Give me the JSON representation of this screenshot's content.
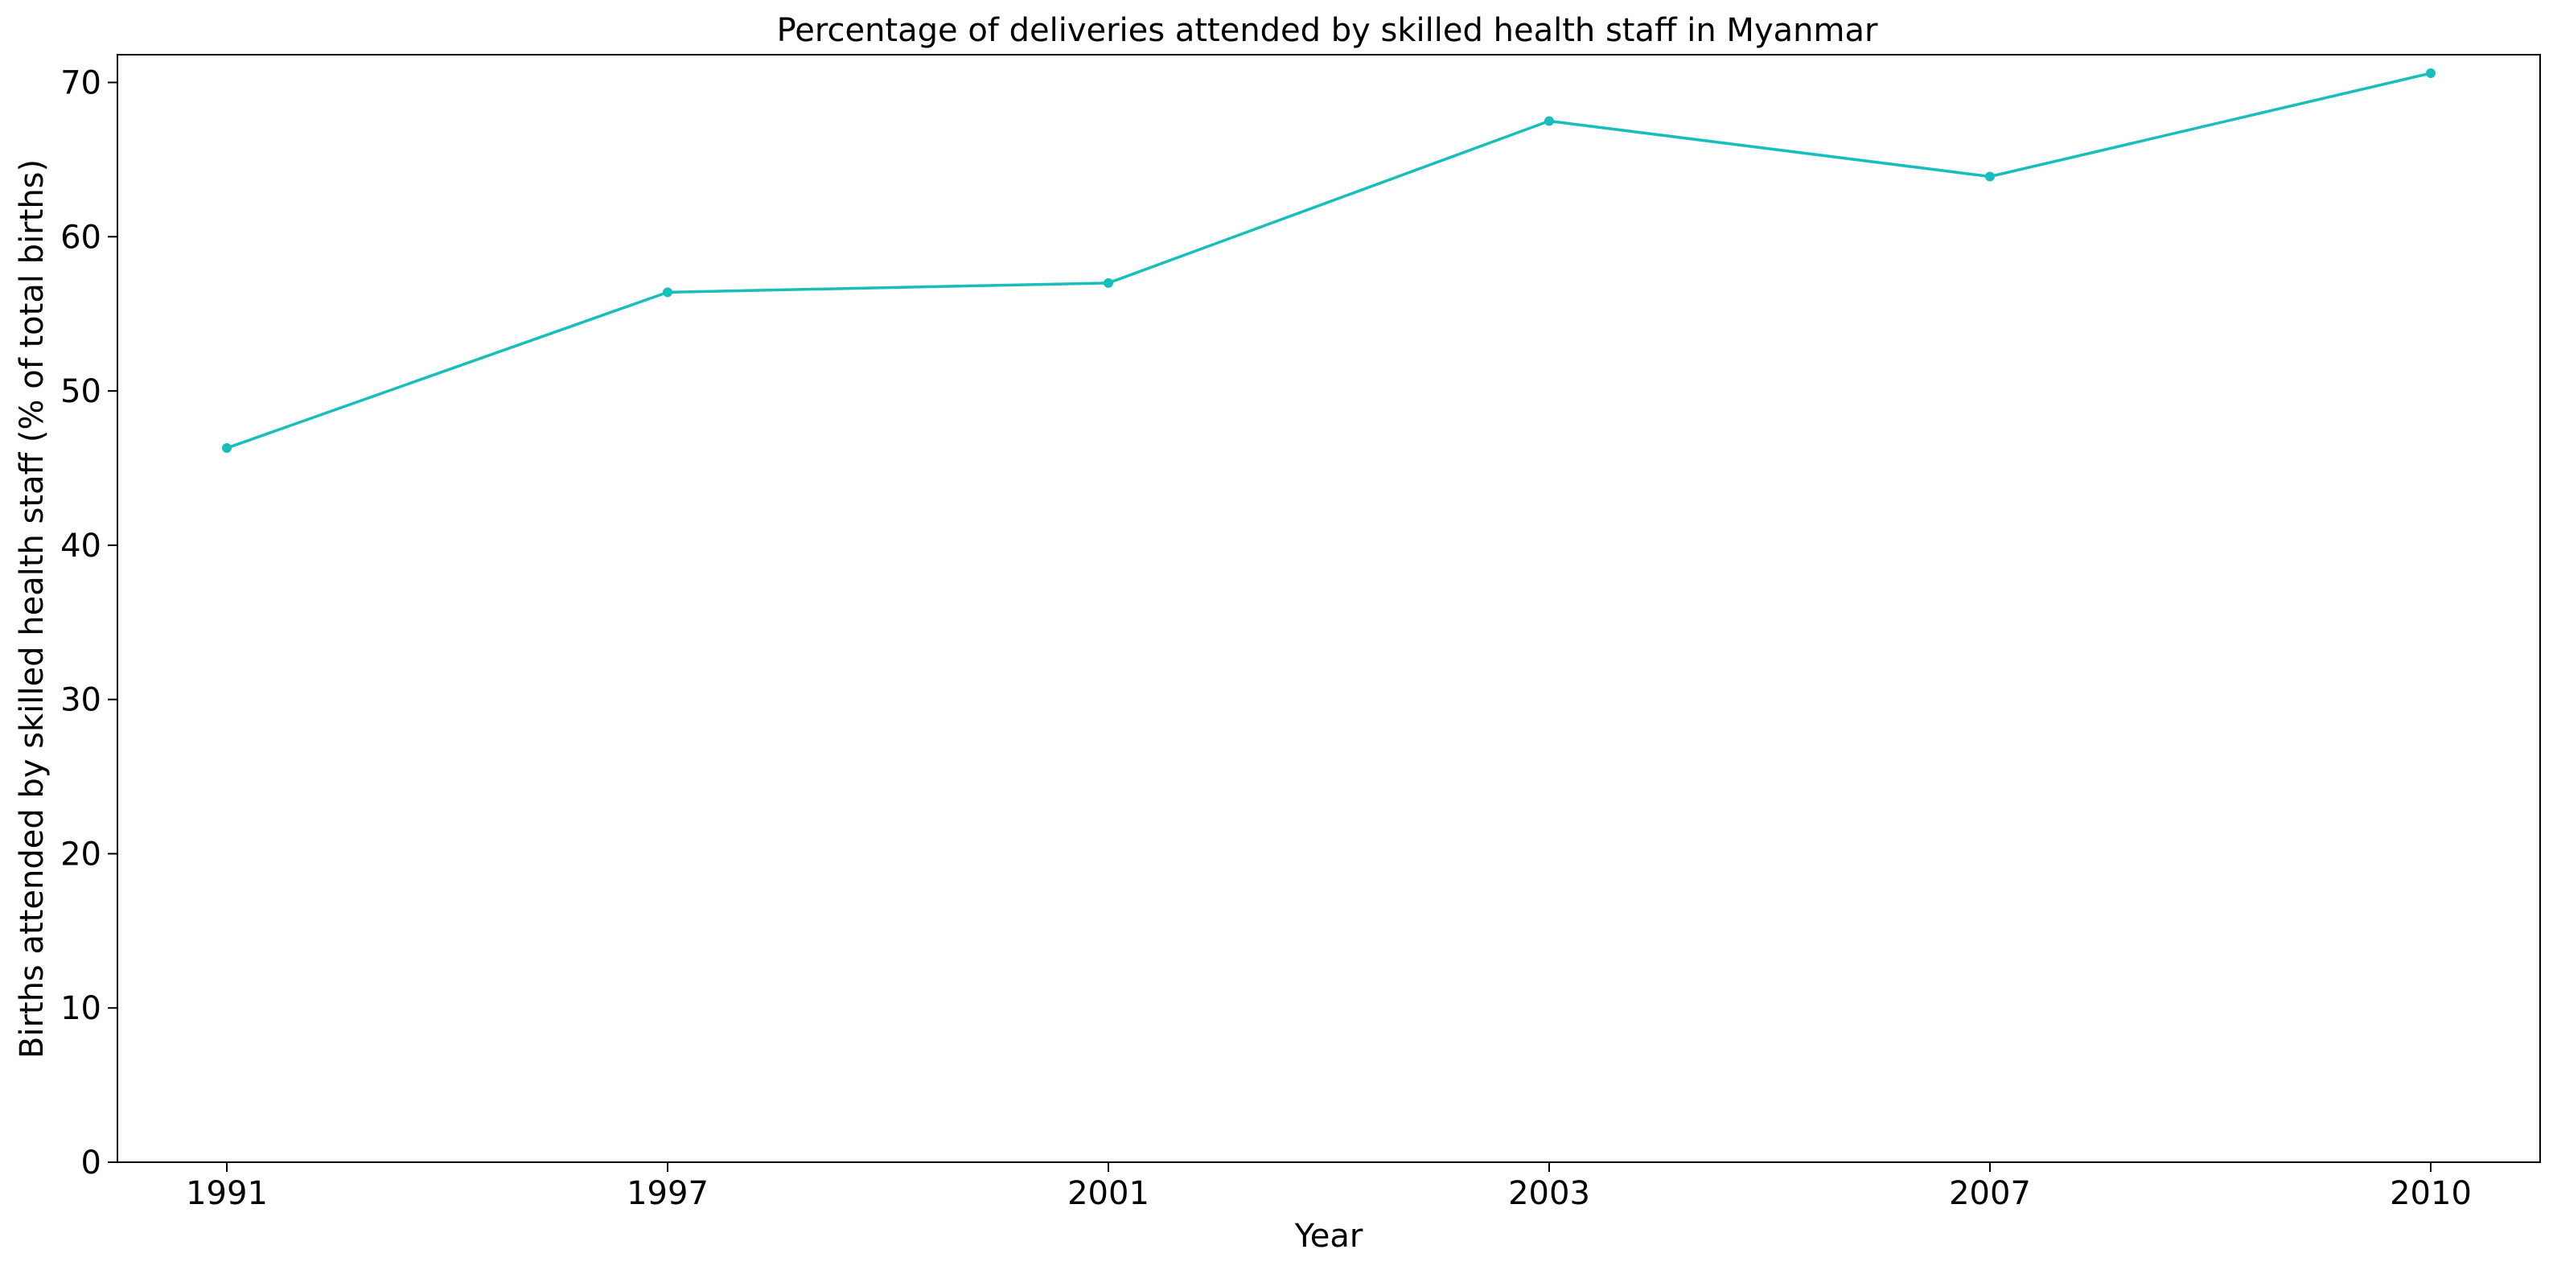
{
  "chart_data": {
    "type": "line",
    "title": "Percentage of deliveries attended by skilled health staff in Myanmar",
    "xlabel": "Year",
    "ylabel": "Births attended by skilled health staff (% of total births)",
    "categories": [
      "1991",
      "1997",
      "2001",
      "2003",
      "2007",
      "2010"
    ],
    "series": [
      {
        "values": [
          46.3,
          56.4,
          57.0,
          67.5,
          63.9,
          70.6
        ],
        "color": "#17bebb"
      }
    ],
    "ylim": [
      0,
      71.8
    ],
    "yticks": [
      "0",
      "10",
      "20",
      "30",
      "40",
      "50",
      "60",
      "70"
    ],
    "grid": false,
    "marker": "circle"
  }
}
